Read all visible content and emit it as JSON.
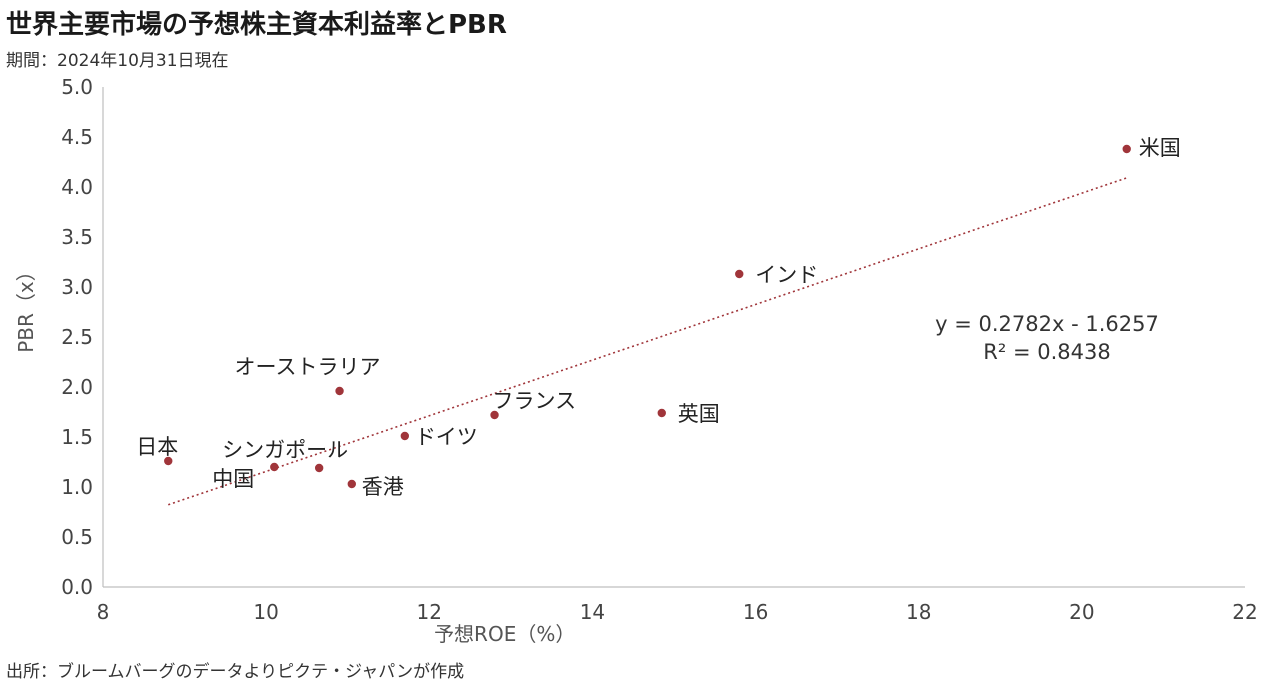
{
  "header": {
    "title": "世界主要市場の予想株主資本利益率とPBR",
    "subtitle": "期間：2024年10月31日現在"
  },
  "footer": {
    "source": "出所：ブルームバーグのデータよりピクテ・ジャパンが作成"
  },
  "chart_data": {
    "type": "scatter",
    "xlabel": "予想ROE（%）",
    "ylabel": "PBR（x）",
    "xlim": [
      8,
      22
    ],
    "ylim": [
      0,
      5
    ],
    "xticks": [
      "8",
      "10",
      "12",
      "14",
      "16",
      "18",
      "20",
      "22"
    ],
    "yticks": [
      "0.0",
      "0.5",
      "1.0",
      "1.5",
      "2.0",
      "2.5",
      "3.0",
      "3.5",
      "4.0",
      "4.5",
      "5.0"
    ],
    "grid": false,
    "marker_color": "#a0353a",
    "trendline_color": "#a0353a",
    "points": [
      {
        "label": "米国",
        "x": 20.55,
        "y": 4.38
      },
      {
        "label": "インド",
        "x": 15.8,
        "y": 3.13
      },
      {
        "label": "英国",
        "x": 14.85,
        "y": 1.74
      },
      {
        "label": "フランス",
        "x": 12.8,
        "y": 1.72
      },
      {
        "label": "ドイツ",
        "x": 11.7,
        "y": 1.51
      },
      {
        "label": "オーストラリア",
        "x": 10.9,
        "y": 1.96
      },
      {
        "label": "日本",
        "x": 8.8,
        "y": 1.26
      },
      {
        "label": "シンガポール",
        "x": 10.65,
        "y": 1.19
      },
      {
        "label": "中国",
        "x": 10.1,
        "y": 1.2
      },
      {
        "label": "香港",
        "x": 11.05,
        "y": 1.03
      }
    ],
    "trendline": {
      "slope": 0.2782,
      "intercept": -1.6257,
      "x_range": [
        8.8,
        20.55
      ],
      "equation": "y = 0.2782x - 1.6257",
      "r2": "R² = 0.8438"
    }
  }
}
